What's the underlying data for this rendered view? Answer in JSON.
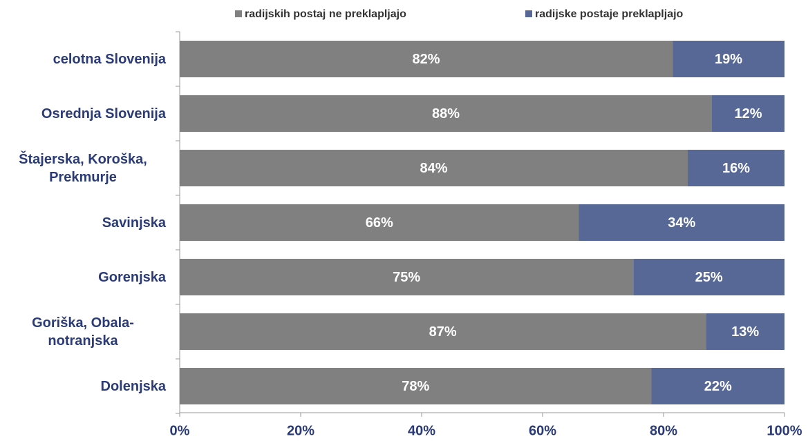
{
  "chart_data": {
    "type": "stacked-bar-horizontal",
    "categories": [
      "celotna Slovenija",
      "Osrednja Slovenija",
      "Štajerska, Koroška, Prekmurje",
      "Savinjska",
      "Gorenjska",
      "Goriška, Obala-notranjska",
      "Dolenjska"
    ],
    "series": [
      {
        "name": "radijskih postaj ne preklapljajo",
        "color": "#808080",
        "values": [
          81.5,
          88,
          84,
          66,
          75,
          87,
          78
        ],
        "value_labels": [
          "82%",
          "88%",
          "84%",
          "66%",
          "75%",
          "87%",
          "78%"
        ]
      },
      {
        "name": "radijske postaje preklapljajo",
        "color": "#576896",
        "values": [
          18.5,
          12,
          16,
          34,
          25,
          13,
          22
        ],
        "value_labels": [
          "19%",
          "12%",
          "16%",
          "34%",
          "25%",
          "13%",
          "22%"
        ]
      }
    ],
    "xlim": [
      0,
      100
    ],
    "xticks": [
      {
        "value": 0,
        "label": "0%"
      },
      {
        "value": 20,
        "label": "20%"
      },
      {
        "value": 40,
        "label": "40%"
      },
      {
        "value": 60,
        "label": "60%"
      },
      {
        "value": 80,
        "label": "80%"
      },
      {
        "value": 100,
        "label": "100%"
      }
    ],
    "legend": "top"
  }
}
